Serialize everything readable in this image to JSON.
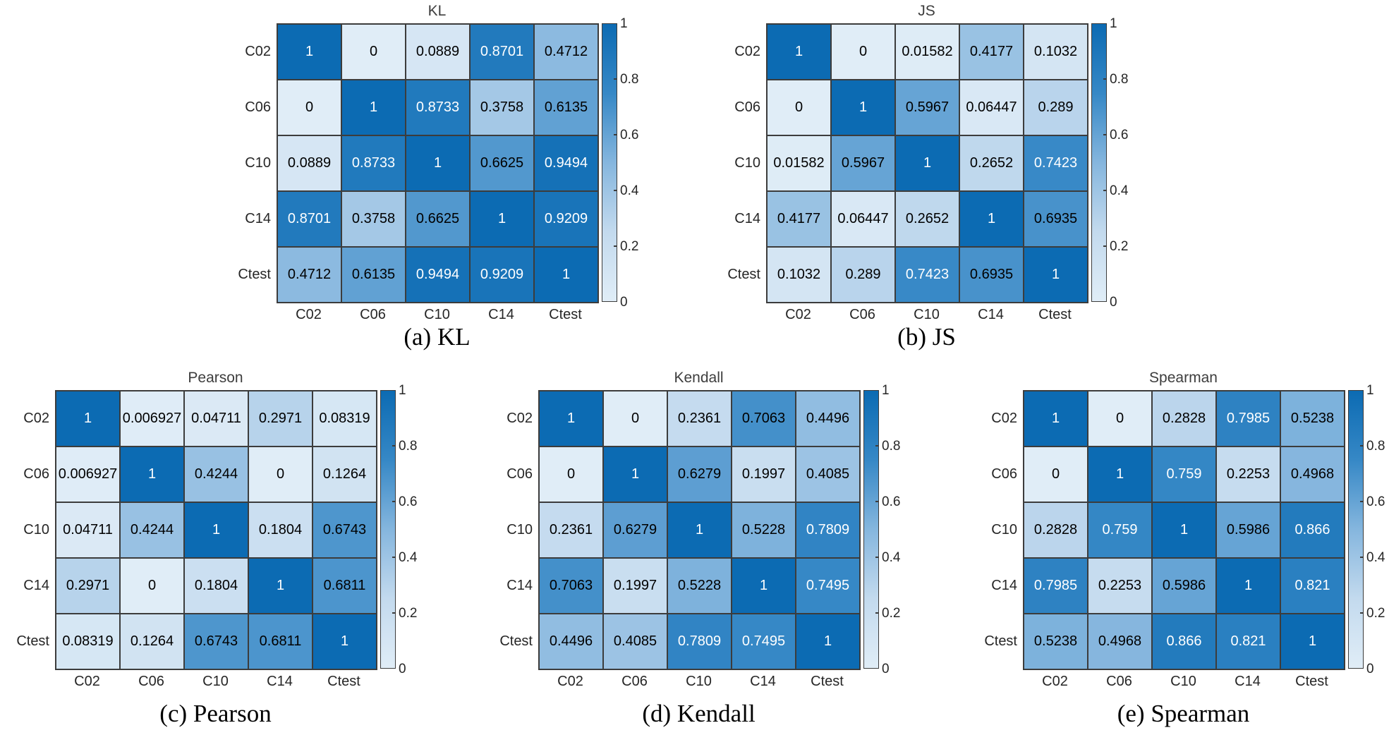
{
  "figure": {
    "background": "#ffffff"
  },
  "categories": [
    "C02",
    "C06",
    "C10",
    "C14",
    "Ctest"
  ],
  "colorbar_ticks": [
    1,
    0.8,
    0.6,
    0.4,
    0.2,
    0
  ],
  "chart_data": [
    {
      "type": "heatmap",
      "title": "KL",
      "caption": "(a) KL",
      "x_categories": [
        "C02",
        "C06",
        "C10",
        "C14",
        "Ctest"
      ],
      "y_categories": [
        "C02",
        "C06",
        "C10",
        "C14",
        "Ctest"
      ],
      "values": [
        [
          1,
          0,
          0.0889,
          0.8701,
          0.4712
        ],
        [
          0,
          1,
          0.8733,
          0.3758,
          0.6135
        ],
        [
          0.0889,
          0.8733,
          1,
          0.6625,
          0.9494
        ],
        [
          0.8701,
          0.3758,
          0.6625,
          1,
          0.9209
        ],
        [
          0.4712,
          0.6135,
          0.9494,
          0.9209,
          1
        ]
      ],
      "value_range": [
        0,
        1
      ],
      "legend_position": "right-colorbar"
    },
    {
      "type": "heatmap",
      "title": "JS",
      "caption": "(b) JS",
      "x_categories": [
        "C02",
        "C06",
        "C10",
        "C14",
        "Ctest"
      ],
      "y_categories": [
        "C02",
        "C06",
        "C10",
        "C14",
        "Ctest"
      ],
      "values": [
        [
          1,
          0,
          0.01582,
          0.4177,
          0.1032
        ],
        [
          0,
          1,
          0.5967,
          0.06447,
          0.289
        ],
        [
          0.01582,
          0.5967,
          1,
          0.2652,
          0.7423
        ],
        [
          0.4177,
          0.06447,
          0.2652,
          1,
          0.6935
        ],
        [
          0.1032,
          0.289,
          0.7423,
          0.6935,
          1
        ]
      ],
      "value_range": [
        0,
        1
      ],
      "legend_position": "right-colorbar"
    },
    {
      "type": "heatmap",
      "title": "Pearson",
      "caption": "(c) Pearson",
      "x_categories": [
        "C02",
        "C06",
        "C10",
        "C14",
        "Ctest"
      ],
      "y_categories": [
        "C02",
        "C06",
        "C10",
        "C14",
        "Ctest"
      ],
      "values": [
        [
          1,
          0.006927,
          0.04711,
          0.2971,
          0.08319
        ],
        [
          0.006927,
          1,
          0.4244,
          0,
          0.1264
        ],
        [
          0.04711,
          0.4244,
          1,
          0.1804,
          0.6743
        ],
        [
          0.2971,
          0,
          0.1804,
          1,
          0.6811
        ],
        [
          0.08319,
          0.1264,
          0.6743,
          0.6811,
          1
        ]
      ],
      "value_range": [
        0,
        1
      ],
      "legend_position": "right-colorbar"
    },
    {
      "type": "heatmap",
      "title": "Kendall",
      "caption": "(d) Kendall",
      "x_categories": [
        "C02",
        "C06",
        "C10",
        "C14",
        "Ctest"
      ],
      "y_categories": [
        "C02",
        "C06",
        "C10",
        "C14",
        "Ctest"
      ],
      "values": [
        [
          1,
          0,
          0.2361,
          0.7063,
          0.4496
        ],
        [
          0,
          1,
          0.6279,
          0.1997,
          0.4085
        ],
        [
          0.2361,
          0.6279,
          1,
          0.5228,
          0.7809
        ],
        [
          0.7063,
          0.1997,
          0.5228,
          1,
          0.7495
        ],
        [
          0.4496,
          0.4085,
          0.7809,
          0.7495,
          1
        ]
      ],
      "value_range": [
        0,
        1
      ],
      "legend_position": "right-colorbar"
    },
    {
      "type": "heatmap",
      "title": "Spearman",
      "caption": "(e) Spearman",
      "x_categories": [
        "C02",
        "C06",
        "C10",
        "C14",
        "Ctest"
      ],
      "y_categories": [
        "C02",
        "C06",
        "C10",
        "C14",
        "Ctest"
      ],
      "values": [
        [
          1,
          0,
          0.2828,
          0.7985,
          0.5238
        ],
        [
          0,
          1,
          0.759,
          0.2253,
          0.4968
        ],
        [
          0.2828,
          0.759,
          1,
          0.5986,
          0.866
        ],
        [
          0.7985,
          0.2253,
          0.5986,
          1,
          0.821
        ],
        [
          0.5238,
          0.4968,
          0.866,
          0.821,
          1
        ]
      ],
      "value_range": [
        0,
        1
      ],
      "legend_position": "right-colorbar"
    }
  ],
  "style": {
    "colormap_stops": [
      "#e0edf7",
      "#c3daee",
      "#85b6de",
      "#3688c6",
      "#0c6bb3"
    ],
    "cell_border_color": "#3c3c3c",
    "label_color": "#262626",
    "title_color": "#3d3d3d",
    "caption_color": "#000000",
    "cell_text_dark": "#000000",
    "cell_text_light": "#ffffff",
    "white_text_threshold": 0.72
  }
}
